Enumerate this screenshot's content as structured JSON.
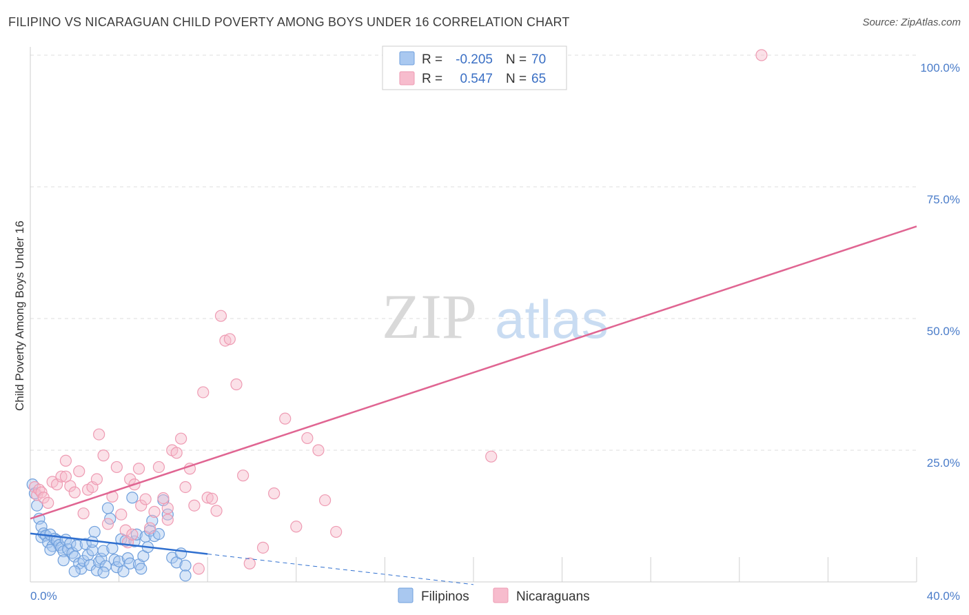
{
  "header": {
    "title": "FILIPINO VS NICARAGUAN CHILD POVERTY AMONG BOYS UNDER 16 CORRELATION CHART",
    "source": "Source: ZipAtlas.com"
  },
  "watermark": {
    "zip": "ZIP",
    "atlas": "atlas"
  },
  "legend": {
    "r_label": "R =",
    "n_label": "N =",
    "filipinos": {
      "r": "-0.205",
      "n": "70"
    },
    "nicaraguans": {
      "r": "0.547",
      "n": "65"
    }
  },
  "colors": {
    "filipinos_fill": "#a9c8f0",
    "filipinos_stroke": "#6f9fdc",
    "filipinos_line": "#2f6fcf",
    "nicaraguans_fill": "#f7bccd",
    "nicaraguans_stroke": "#ee9ab2",
    "nicaraguans_line": "#e06592",
    "tick_color": "#4a7cc9",
    "grid": "#dddddd"
  },
  "chart_data": {
    "type": "scatter",
    "title": "FILIPINO VS NICARAGUAN CHILD POVERTY AMONG BOYS UNDER 16 CORRELATION CHART",
    "xlabel": "",
    "ylabel": "Child Poverty Among Boys Under 16",
    "xlim": [
      0,
      40
    ],
    "ylim": [
      0,
      100
    ],
    "x_tick_labels": [
      "0.0%",
      "40.0%"
    ],
    "y_ticks": [
      25,
      50,
      75,
      100
    ],
    "y_tick_labels": [
      "25.0%",
      "50.0%",
      "75.0%",
      "100.0%"
    ],
    "grid": true,
    "legend_position": "top-center",
    "series": [
      {
        "name": "Filipinos",
        "r": -0.205,
        "n": 70,
        "trend": {
          "x0": 0,
          "y0": 9.2,
          "x1": 8,
          "y1": 5.3,
          "dash_to_x": 20,
          "dash_to_y": -0.5
        },
        "points": [
          [
            0.1,
            18.5
          ],
          [
            0.2,
            16.8
          ],
          [
            0.3,
            14.5
          ],
          [
            0.4,
            12.0
          ],
          [
            0.5,
            10.5
          ],
          [
            0.5,
            8.5
          ],
          [
            0.6,
            9.2
          ],
          [
            0.7,
            8.8
          ],
          [
            0.8,
            7.5
          ],
          [
            0.9,
            9.0
          ],
          [
            1.0,
            6.8
          ],
          [
            1.1,
            8.2
          ],
          [
            1.2,
            7.9
          ],
          [
            1.3,
            7.0
          ],
          [
            1.4,
            6.5
          ],
          [
            1.5,
            5.8
          ],
          [
            1.6,
            8.0
          ],
          [
            1.7,
            6.2
          ],
          [
            1.8,
            7.3
          ],
          [
            1.9,
            5.5
          ],
          [
            2.0,
            4.8
          ],
          [
            2.1,
            6.9
          ],
          [
            2.2,
            3.5
          ],
          [
            2.3,
            2.5
          ],
          [
            2.4,
            4.0
          ],
          [
            2.5,
            7.2
          ],
          [
            2.6,
            5.1
          ],
          [
            2.7,
            3.2
          ],
          [
            2.8,
            6.0
          ],
          [
            2.9,
            9.5
          ],
          [
            3.0,
            2.2
          ],
          [
            3.1,
            3.8
          ],
          [
            3.2,
            4.4
          ],
          [
            3.3,
            5.9
          ],
          [
            3.4,
            3.0
          ],
          [
            3.5,
            14.0
          ],
          [
            3.6,
            12.0
          ],
          [
            3.7,
            6.4
          ],
          [
            3.8,
            4.2
          ],
          [
            3.9,
            2.8
          ],
          [
            4.0,
            3.9
          ],
          [
            4.1,
            8.1
          ],
          [
            4.2,
            2.0
          ],
          [
            4.3,
            7.8
          ],
          [
            4.4,
            4.5
          ],
          [
            4.5,
            3.5
          ],
          [
            4.6,
            16.0
          ],
          [
            4.7,
            7.7
          ],
          [
            4.8,
            9.0
          ],
          [
            4.9,
            3.3
          ],
          [
            5.0,
            2.5
          ],
          [
            5.1,
            4.9
          ],
          [
            5.2,
            8.6
          ],
          [
            5.3,
            6.6
          ],
          [
            5.4,
            9.7
          ],
          [
            5.5,
            11.6
          ],
          [
            5.6,
            8.7
          ],
          [
            5.8,
            9.1
          ],
          [
            6.0,
            15.5
          ],
          [
            6.2,
            12.8
          ],
          [
            6.4,
            4.6
          ],
          [
            6.6,
            3.7
          ],
          [
            6.8,
            5.4
          ],
          [
            7.0,
            3.1
          ],
          [
            7.0,
            1.2
          ],
          [
            0.9,
            6.1
          ],
          [
            1.5,
            4.1
          ],
          [
            2.0,
            2.0
          ],
          [
            2.8,
            7.6
          ],
          [
            3.3,
            1.8
          ]
        ]
      },
      {
        "name": "Nicaraguans",
        "r": 0.547,
        "n": 65,
        "trend": {
          "x0": 0,
          "y0": 12.0,
          "x1": 40,
          "y1": 67.5
        },
        "points": [
          [
            0.2,
            18.0
          ],
          [
            0.3,
            16.5
          ],
          [
            0.4,
            17.5
          ],
          [
            0.5,
            17.0
          ],
          [
            0.6,
            16.0
          ],
          [
            0.8,
            15.0
          ],
          [
            1.0,
            19.0
          ],
          [
            1.2,
            18.5
          ],
          [
            1.4,
            20.0
          ],
          [
            1.6,
            23.0
          ],
          [
            1.8,
            18.2
          ],
          [
            2.0,
            17.0
          ],
          [
            2.2,
            21.0
          ],
          [
            2.4,
            13.0
          ],
          [
            2.6,
            17.5
          ],
          [
            2.8,
            18.0
          ],
          [
            3.0,
            19.5
          ],
          [
            3.1,
            28.0
          ],
          [
            3.3,
            24.0
          ],
          [
            3.5,
            11.0
          ],
          [
            3.7,
            16.2
          ],
          [
            3.9,
            21.8
          ],
          [
            4.1,
            12.8
          ],
          [
            4.3,
            9.8
          ],
          [
            4.4,
            7.5
          ],
          [
            4.5,
            19.5
          ],
          [
            4.7,
            18.5
          ],
          [
            4.9,
            21.5
          ],
          [
            5.0,
            14.5
          ],
          [
            5.2,
            15.7
          ],
          [
            5.4,
            10.2
          ],
          [
            5.6,
            13.3
          ],
          [
            5.8,
            21.8
          ],
          [
            6.0,
            15.9
          ],
          [
            6.2,
            14.0
          ],
          [
            6.4,
            25.0
          ],
          [
            6.6,
            24.5
          ],
          [
            6.8,
            27.2
          ],
          [
            7.0,
            18.0
          ],
          [
            7.2,
            21.5
          ],
          [
            7.4,
            14.5
          ],
          [
            7.6,
            2.5
          ],
          [
            7.8,
            36.0
          ],
          [
            8.0,
            16.0
          ],
          [
            8.2,
            15.8
          ],
          [
            8.4,
            13.5
          ],
          [
            8.6,
            50.5
          ],
          [
            8.8,
            45.8
          ],
          [
            9.0,
            46.1
          ],
          [
            9.3,
            37.5
          ],
          [
            9.6,
            20.2
          ],
          [
            9.9,
            3.5
          ],
          [
            10.5,
            6.5
          ],
          [
            11.0,
            16.8
          ],
          [
            11.5,
            31.0
          ],
          [
            12.0,
            10.5
          ],
          [
            12.5,
            27.3
          ],
          [
            13.0,
            25.0
          ],
          [
            13.3,
            15.5
          ],
          [
            13.8,
            9.5
          ],
          [
            20.8,
            23.8
          ],
          [
            33.0,
            100.0
          ],
          [
            1.6,
            20.0
          ],
          [
            4.6,
            9.0
          ],
          [
            6.2,
            11.8
          ]
        ]
      }
    ]
  },
  "bottom_legend": {
    "filipinos": "Filipinos",
    "nicaraguans": "Nicaraguans"
  }
}
